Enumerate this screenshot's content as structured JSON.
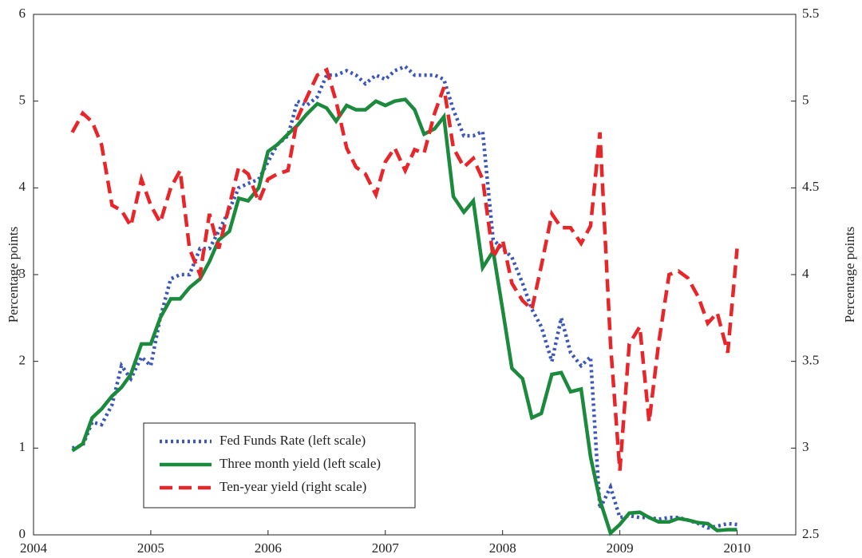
{
  "chart_data": {
    "type": "line",
    "ylabel": "Percentage points",
    "y2label": "Percentage points",
    "x": [
      2004.33,
      2004.42,
      2004.5,
      2004.58,
      2004.67,
      2004.75,
      2004.83,
      2004.92,
      2005,
      2005.08,
      2005.17,
      2005.25,
      2005.33,
      2005.42,
      2005.5,
      2005.58,
      2005.67,
      2005.75,
      2005.83,
      2005.92,
      2006,
      2006.08,
      2006.17,
      2006.25,
      2006.33,
      2006.42,
      2006.5,
      2006.58,
      2006.67,
      2006.75,
      2006.83,
      2006.92,
      2007,
      2007.08,
      2007.17,
      2007.25,
      2007.33,
      2007.42,
      2007.5,
      2007.58,
      2007.67,
      2007.75,
      2007.83,
      2007.92,
      2008,
      2008.08,
      2008.17,
      2008.25,
      2008.33,
      2008.42,
      2008.5,
      2008.58,
      2008.67,
      2008.75,
      2008.83,
      2008.92,
      2009,
      2009.08,
      2009.17,
      2009.25,
      2009.33,
      2009.42,
      2009.5,
      2009.58,
      2009.67,
      2009.75,
      2009.83,
      2009.92,
      2010
    ],
    "xlim": [
      2004,
      2010.5
    ],
    "xticks": [
      2004,
      2005,
      2006,
      2007,
      2008,
      2009,
      2010
    ],
    "ylim": [
      0,
      6
    ],
    "yticks": [
      0,
      1,
      2,
      3,
      4,
      5,
      6
    ],
    "y2lim": [
      2.5,
      5.5
    ],
    "y2ticks": [
      2.5,
      3,
      3.5,
      4,
      4.5,
      5,
      5.5
    ],
    "legend": "lower left",
    "series": [
      {
        "name": "Fed Funds Rate (left scale)",
        "color": "#3a56b8",
        "dash": "dotted",
        "axis": "y",
        "values": [
          1.0,
          1.03,
          1.3,
          1.27,
          1.5,
          1.95,
          1.8,
          2.05,
          1.95,
          2.5,
          2.95,
          3.0,
          3.0,
          3.3,
          3.3,
          3.5,
          3.75,
          4.0,
          4.05,
          4.1,
          4.3,
          4.5,
          4.6,
          5.0,
          4.95,
          5.05,
          5.3,
          5.3,
          5.35,
          5.3,
          5.2,
          5.3,
          5.25,
          5.35,
          5.4,
          5.3,
          5.3,
          5.3,
          5.25,
          4.9,
          4.6,
          4.6,
          4.65,
          3.4,
          3.3,
          3.2,
          2.9,
          2.6,
          2.4,
          2.0,
          2.5,
          2.1,
          1.95,
          2.05,
          0.3,
          0.55,
          0.2,
          0.22,
          0.2,
          0.2,
          0.18,
          0.2,
          0.2,
          0.17,
          0.13,
          0.08,
          0.1,
          0.13,
          0.12
        ]
      },
      {
        "name": "Three month yield (left scale)",
        "color": "#1b8a3c",
        "dash": "solid",
        "axis": "y",
        "values": [
          0.97,
          1.05,
          1.35,
          1.45,
          1.6,
          1.7,
          1.85,
          2.2,
          2.2,
          2.5,
          2.72,
          2.72,
          2.85,
          2.95,
          3.15,
          3.4,
          3.5,
          3.88,
          3.85,
          4.0,
          4.42,
          4.5,
          4.62,
          4.72,
          4.85,
          4.97,
          4.92,
          4.77,
          4.95,
          4.9,
          4.9,
          5.0,
          4.95,
          5.0,
          5.02,
          4.9,
          4.62,
          4.68,
          4.82,
          3.9,
          3.72,
          3.85,
          3.08,
          3.27,
          2.6,
          1.92,
          1.8,
          1.35,
          1.4,
          1.85,
          1.87,
          1.65,
          1.68,
          0.9,
          0.4,
          0.02,
          0.12,
          0.25,
          0.26,
          0.2,
          0.15,
          0.15,
          0.19,
          0.17,
          0.14,
          0.13,
          0.05,
          0.06,
          0.06
        ]
      },
      {
        "name": "Ten-year yield (right scale)",
        "color": "#e8262a",
        "dash": "dashed",
        "axis": "y2",
        "values": [
          4.82,
          4.93,
          4.88,
          4.75,
          4.4,
          4.37,
          4.28,
          4.55,
          4.4,
          4.3,
          4.5,
          4.6,
          4.15,
          4.0,
          4.35,
          4.15,
          4.4,
          4.62,
          4.58,
          4.42,
          4.55,
          4.58,
          4.6,
          4.9,
          5.02,
          5.15,
          5.18,
          5.0,
          4.73,
          4.62,
          4.58,
          4.46,
          4.65,
          4.73,
          4.6,
          4.72,
          4.7,
          4.93,
          5.08,
          4.73,
          4.62,
          4.67,
          4.55,
          4.1,
          4.2,
          3.95,
          3.85,
          3.8,
          4.05,
          4.35,
          4.27,
          4.27,
          4.18,
          4.28,
          4.82,
          3.6,
          2.87,
          3.6,
          3.7,
          3.15,
          3.6,
          4.0,
          4.02,
          3.98,
          3.87,
          3.72,
          3.78,
          3.55,
          4.15
        ]
      }
    ]
  }
}
